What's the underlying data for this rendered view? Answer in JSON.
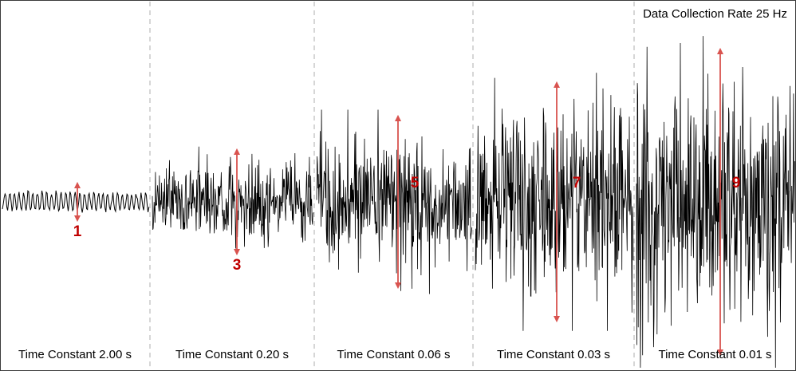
{
  "chart_data": {
    "type": "line",
    "title": "",
    "xlabel": "",
    "ylabel": "",
    "grid": false,
    "annotations": {
      "data_rate": "Data Collection Rate 25 Hz",
      "arrow_color": "#d9534f",
      "label_color": "#c00000",
      "signal_color": "#000000",
      "divider_color": "#bbbbbb"
    },
    "segments": [
      {
        "label": "Time Constant 2.00 s",
        "relative_amplitude": "1",
        "amplitude": 1
      },
      {
        "label": "Time Constant 0.20 s",
        "relative_amplitude": "3",
        "amplitude": 3
      },
      {
        "label": "Time Constant 0.06 s",
        "relative_amplitude": "5",
        "amplitude": 5
      },
      {
        "label": "Time Constant 0.03 s",
        "relative_amplitude": "7",
        "amplitude": 7
      },
      {
        "label": "Time Constant 0.01 s",
        "relative_amplitude": "9",
        "amplitude": 9
      }
    ]
  }
}
